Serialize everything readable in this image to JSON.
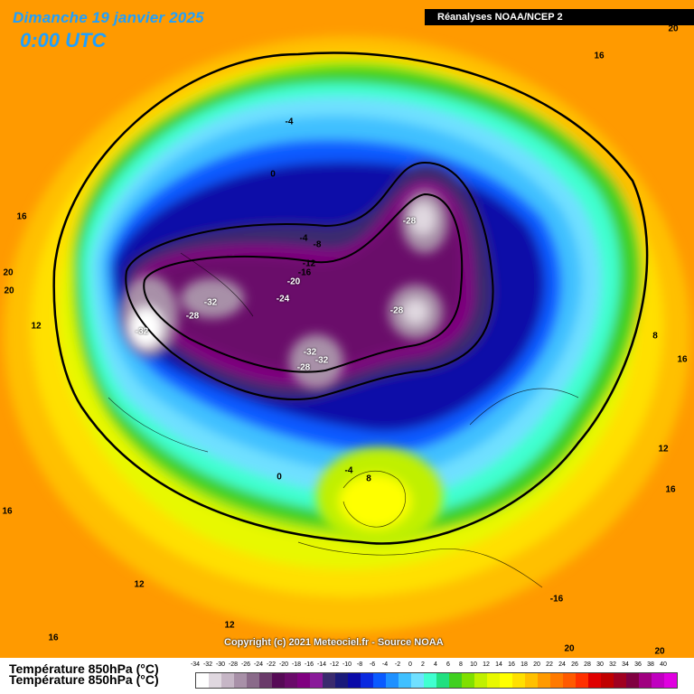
{
  "header": {
    "date": "Dimanche 19 janvier 2025",
    "time": "0:00 UTC",
    "source": "Réanalyses NOAA/NCEP 2"
  },
  "copyright": "Copyright (c) 2021 Meteociel.fr - Source NOAA",
  "legend": {
    "title_line1": "Température 850hPa (°C)",
    "title_line2": "Température 850hPa (°C)",
    "ticks": [
      "-34",
      "-32",
      "-30",
      "-28",
      "-26",
      "-24",
      "-22",
      "-20",
      "-18",
      "-16",
      "-14",
      "-12",
      "-10",
      "-8",
      "-6",
      "-4",
      "-2",
      "0",
      "2",
      "4",
      "6",
      "8",
      "10",
      "12",
      "14",
      "16",
      "18",
      "20",
      "22",
      "24",
      "26",
      "28",
      "30",
      "32",
      "34",
      "36",
      "38",
      "40"
    ],
    "colors": [
      "#ffffff",
      "#e0d8e0",
      "#c6b6c6",
      "#a890a8",
      "#8a6a8a",
      "#6a3a6a",
      "#560a56",
      "#6a0a6a",
      "#800080",
      "#8a1a9a",
      "#3a2a6e",
      "#1a1a7a",
      "#0a0aa8",
      "#0a2ae0",
      "#0a5aff",
      "#1e90ff",
      "#40c0ff",
      "#70e0ff",
      "#40ffd0",
      "#20e080",
      "#40d020",
      "#80e000",
      "#c0f000",
      "#e8f800",
      "#ffff00",
      "#ffe000",
      "#ffc000",
      "#ff9a00",
      "#ff7a00",
      "#ff5a00",
      "#ff3000",
      "#e00000",
      "#c00000",
      "#a00020",
      "#800040",
      "#a00080",
      "#c000c0",
      "#e000e0"
    ]
  },
  "map_labels": [
    {
      "text": "20"
    },
    {
      "text": "16"
    },
    {
      "text": "-4"
    },
    {
      "text": "0"
    },
    {
      "text": "16"
    },
    {
      "text": "-28"
    },
    {
      "text": "-4"
    },
    {
      "text": "-8"
    },
    {
      "text": "-12"
    },
    {
      "text": "-16"
    },
    {
      "text": "-20"
    },
    {
      "text": "20"
    },
    {
      "text": "20"
    },
    {
      "text": "-24"
    },
    {
      "text": "-32"
    },
    {
      "text": "-28"
    },
    {
      "text": "-28"
    },
    {
      "text": "12"
    },
    {
      "text": "-32"
    },
    {
      "text": "-32"
    },
    {
      "text": "-28"
    },
    {
      "text": "8"
    },
    {
      "text": "16"
    },
    {
      "text": "12"
    },
    {
      "text": "0"
    },
    {
      "text": "-4"
    },
    {
      "text": "8"
    },
    {
      "text": "16"
    },
    {
      "text": "16"
    },
    {
      "text": "12"
    },
    {
      "text": "-16"
    },
    {
      "text": "12"
    },
    {
      "text": "16"
    },
    {
      "text": "20"
    },
    {
      "text": "20"
    },
    {
      "text": "-32"
    }
  ]
}
